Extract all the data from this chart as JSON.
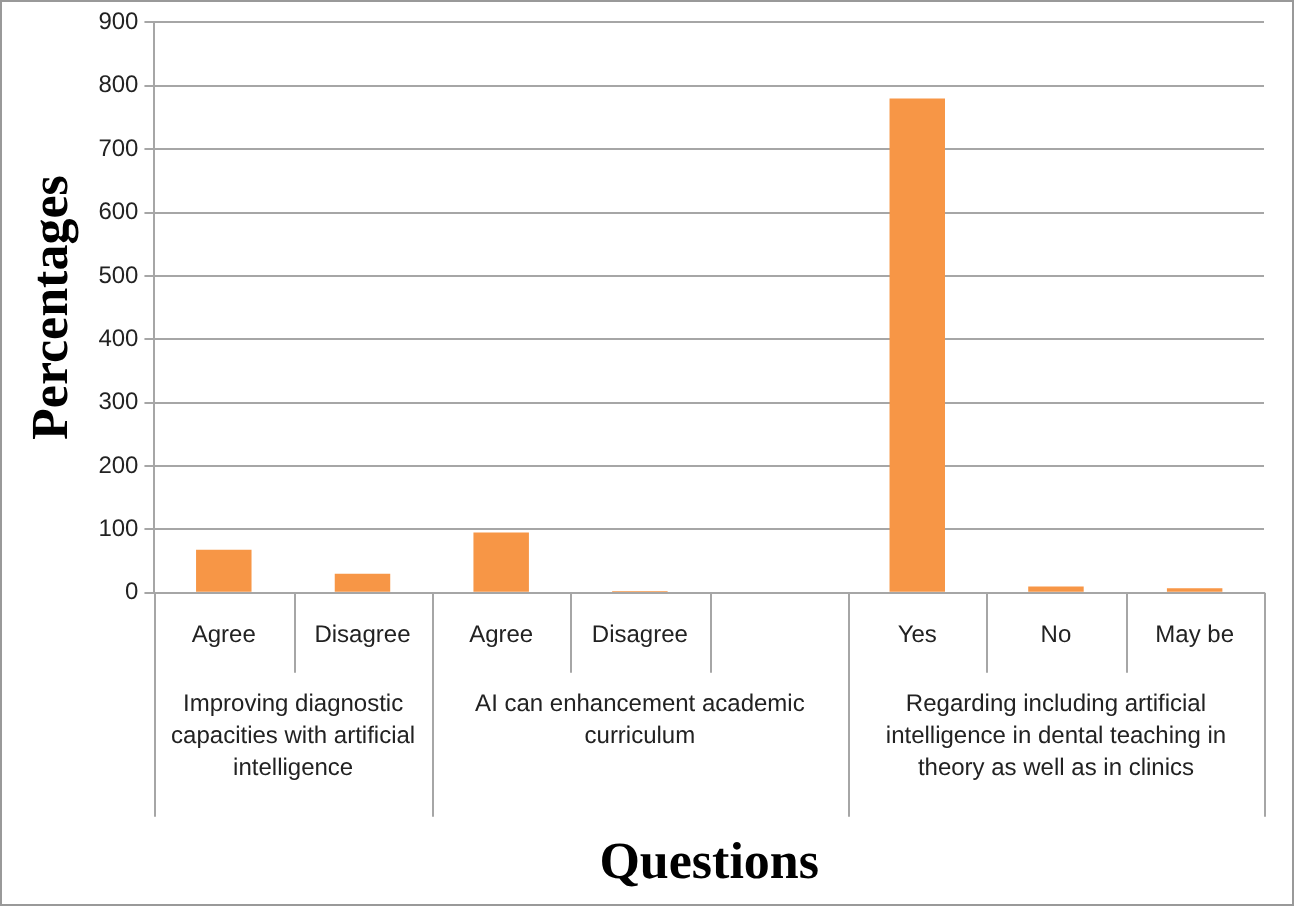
{
  "chart_data": {
    "type": "bar",
    "xlabel": "Questions",
    "ylabel": "Percentages",
    "categories": [
      "Agree",
      "Disagree",
      "Agree",
      "Disagree",
      null,
      "Yes",
      "No",
      "May be"
    ],
    "values": [
      68,
      30,
      95,
      3,
      null,
      780,
      10,
      7
    ],
    "color": "#f79646",
    "ylim": [
      0,
      900
    ],
    "yticks": [
      0,
      100,
      200,
      300,
      400,
      500,
      600,
      700,
      800,
      900
    ],
    "grid": "y",
    "annotations": [
      "Improving diagnostic capacities with artificial intelligence",
      "AI can enhancement academic curriculum",
      "Regarding including artificial intelligence in dental teaching in theory as well as in clinics"
    ]
  }
}
